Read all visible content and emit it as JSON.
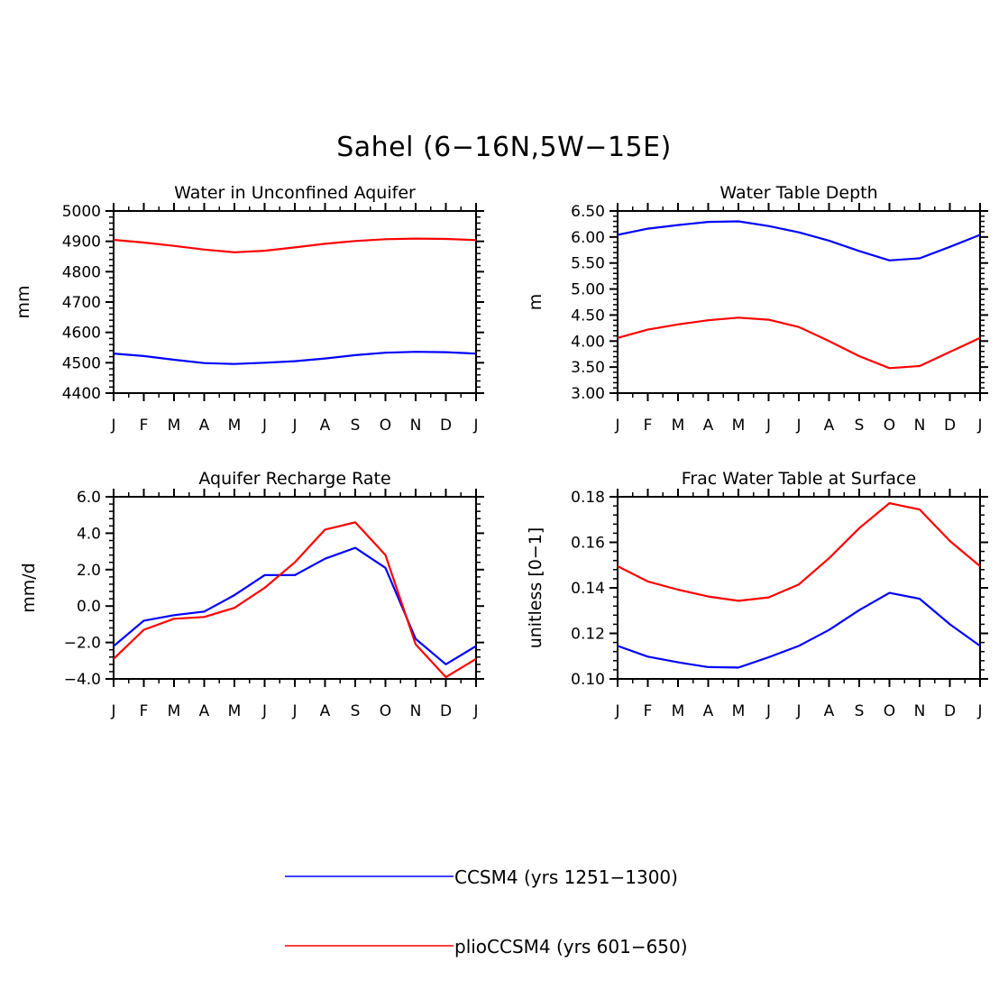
{
  "figure_title": "Sahel (6−16N,5W−15E)",
  "months": [
    "J",
    "F",
    "M",
    "A",
    "M",
    "J",
    "J",
    "A",
    "S",
    "O",
    "N",
    "D",
    "J"
  ],
  "legend": [
    {
      "label": "CCSM4 (yrs 1251−1300)",
      "color": "#0000ff"
    },
    {
      "label": "plioCCSM4 (yrs 601−650)",
      "color": "#ff0000"
    }
  ],
  "chart_data": [
    {
      "type": "line",
      "title": "Water in Unconfined Aquifer",
      "ylabel": "mm",
      "ylim": [
        4400,
        5000
      ],
      "yticks": [
        "4400",
        "4500",
        "4600",
        "4700",
        "4800",
        "4900",
        "5000"
      ],
      "categories": [
        "J",
        "F",
        "M",
        "A",
        "M",
        "J",
        "J",
        "A",
        "S",
        "O",
        "N",
        "D",
        "J"
      ],
      "series": [
        {
          "name": "CCSM4 (yrs 1251−1300)",
          "color": "#0000ff",
          "values": [
            4530,
            4522,
            4510,
            4499,
            4496,
            4500,
            4505,
            4514,
            4525,
            4533,
            4536,
            4535,
            4530
          ]
        },
        {
          "name": "plioCCSM4 (yrs 601−650)",
          "color": "#ff0000",
          "values": [
            4905,
            4896,
            4885,
            4873,
            4864,
            4869,
            4880,
            4892,
            4901,
            4907,
            4909,
            4908,
            4904
          ]
        }
      ]
    },
    {
      "type": "line",
      "title": "Water Table Depth",
      "ylabel": "m",
      "ylim": [
        3.0,
        6.5
      ],
      "yticks": [
        "3.00",
        "3.50",
        "4.00",
        "4.50",
        "5.00",
        "5.50",
        "6.00",
        "6.50"
      ],
      "categories": [
        "J",
        "F",
        "M",
        "A",
        "M",
        "J",
        "J",
        "A",
        "S",
        "O",
        "N",
        "D",
        "J"
      ],
      "series": [
        {
          "name": "CCSM4 (yrs 1251−1300)",
          "color": "#0000ff",
          "values": [
            6.04,
            6.16,
            6.23,
            6.29,
            6.3,
            6.21,
            6.09,
            5.93,
            5.73,
            5.55,
            5.59,
            5.81,
            6.04
          ]
        },
        {
          "name": "plioCCSM4 (yrs 601−650)",
          "color": "#ff0000",
          "values": [
            4.06,
            4.22,
            4.32,
            4.4,
            4.45,
            4.41,
            4.27,
            4.0,
            3.71,
            3.48,
            3.52,
            3.79,
            4.06
          ]
        }
      ]
    },
    {
      "type": "line",
      "title": "Aquifer Recharge Rate",
      "ylabel": "mm/d",
      "ylim": [
        -4.0,
        6.0
      ],
      "yticks": [
        "−4.0",
        "−2.0",
        "0.0",
        "2.0",
        "4.0",
        "6.0"
      ],
      "categories": [
        "J",
        "F",
        "M",
        "A",
        "M",
        "J",
        "J",
        "A",
        "S",
        "O",
        "N",
        "D",
        "J"
      ],
      "series": [
        {
          "name": "CCSM4 (yrs 1251−1300)",
          "color": "#0000ff",
          "values": [
            -2.2,
            -0.8,
            -0.5,
            -0.3,
            0.6,
            1.7,
            1.7,
            2.6,
            3.2,
            2.1,
            -1.8,
            -3.2,
            -2.2
          ]
        },
        {
          "name": "plioCCSM4 (yrs 601−650)",
          "color": "#ff0000",
          "values": [
            -2.9,
            -1.3,
            -0.7,
            -0.6,
            -0.1,
            1.0,
            2.4,
            4.2,
            4.6,
            2.8,
            -2.1,
            -3.9,
            -2.9
          ]
        }
      ]
    },
    {
      "type": "line",
      "title": "Frac Water Table at Surface",
      "ylabel": "unitless [0−1]",
      "ylim": [
        0.1,
        0.18
      ],
      "yticks": [
        "0.10",
        "0.12",
        "0.14",
        "0.16",
        "0.18"
      ],
      "categories": [
        "J",
        "F",
        "M",
        "A",
        "M",
        "J",
        "J",
        "A",
        "S",
        "O",
        "N",
        "D",
        "J"
      ],
      "series": [
        {
          "name": "CCSM4 (yrs 1251−1300)",
          "color": "#0000ff",
          "values": [
            0.1145,
            0.1098,
            0.1073,
            0.1052,
            0.105,
            0.1095,
            0.1145,
            0.1215,
            0.1302,
            0.1378,
            0.1352,
            0.124,
            0.1145
          ]
        },
        {
          "name": "plioCCSM4 (yrs 601−650)",
          "color": "#ff0000",
          "values": [
            0.1495,
            0.1428,
            0.1392,
            0.1362,
            0.1343,
            0.1358,
            0.1415,
            0.153,
            0.1662,
            0.1772,
            0.1744,
            0.1606,
            0.1495
          ]
        }
      ]
    }
  ]
}
